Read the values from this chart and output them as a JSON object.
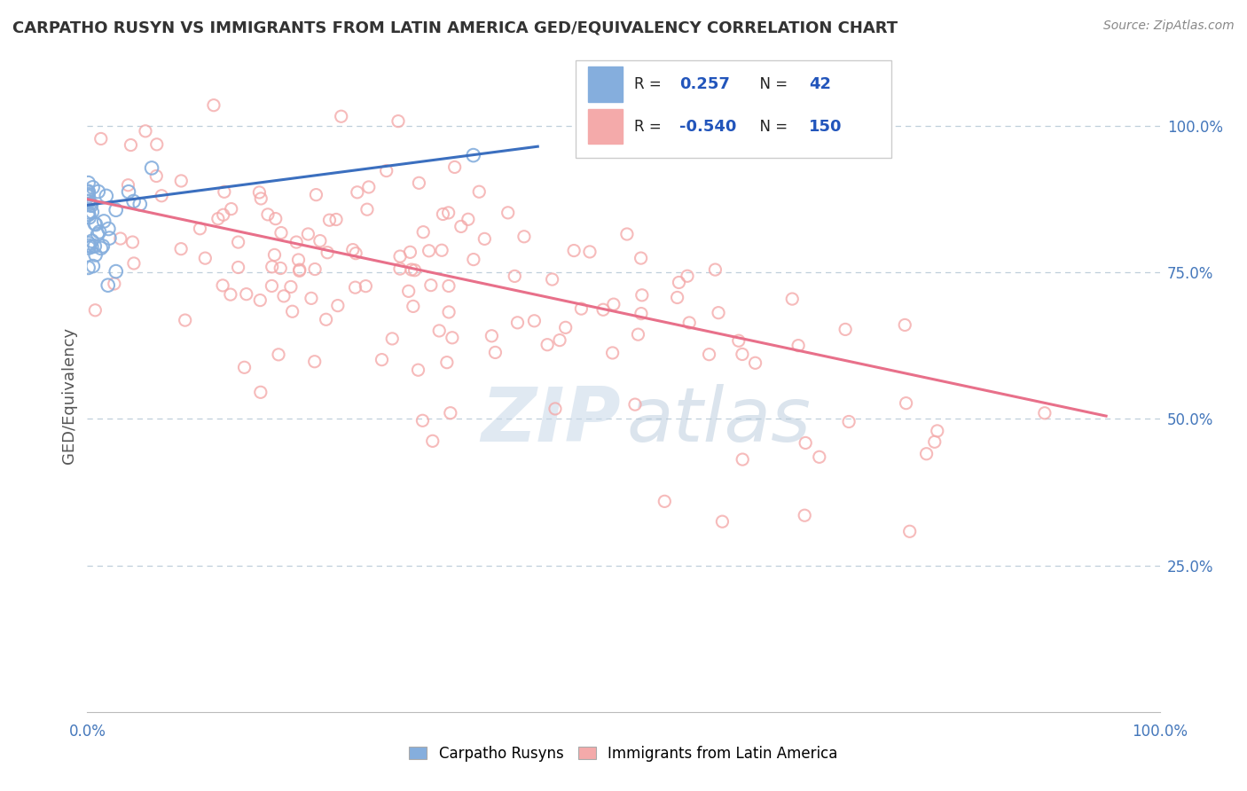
{
  "title": "CARPATHO RUSYN VS IMMIGRANTS FROM LATIN AMERICA GED/EQUIVALENCY CORRELATION CHART",
  "source": "Source: ZipAtlas.com",
  "ylabel": "GED/Equivalency",
  "blue_R": 0.257,
  "blue_N": 42,
  "pink_R": -0.54,
  "pink_N": 150,
  "blue_color": "#85AEDD",
  "pink_color": "#F4AAAA",
  "blue_edge_color": "#85AEDD",
  "pink_edge_color": "#F4AAAA",
  "blue_line_color": "#3B6FBF",
  "pink_line_color": "#E8708A",
  "legend_label_blue": "Carpatho Rusyns",
  "legend_label_pink": "Immigrants from Latin America",
  "grid_color": "#BFCFDA",
  "watermark_zip_color": "#C8D8E8",
  "watermark_atlas_color": "#B0C4D8",
  "title_color": "#333333",
  "source_color": "#888888",
  "axis_tick_color": "#4477BB",
  "blue_seed": 12,
  "pink_seed": 5,
  "xlim": [
    0.0,
    1.0
  ],
  "ylim": [
    0.0,
    1.08
  ]
}
